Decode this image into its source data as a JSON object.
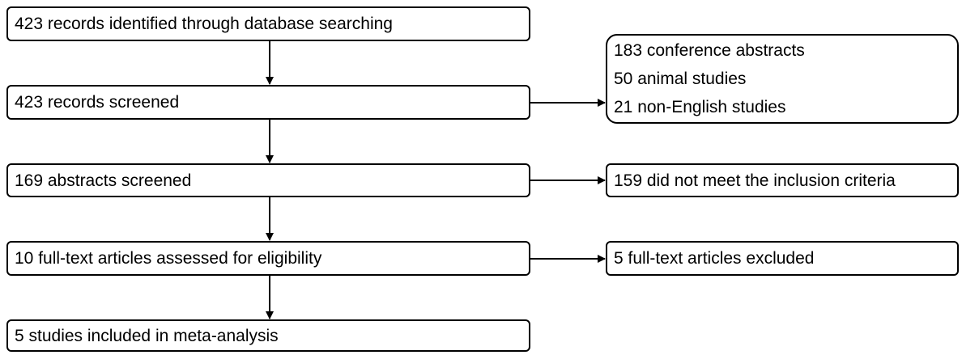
{
  "flow": {
    "main": [
      "423 records identified through database searching",
      "423 records screened",
      "169 abstracts screened",
      "10 full-text articles assessed for eligibility",
      "5 studies included in meta-analysis"
    ],
    "excluded": {
      "records": [
        "183 conference abstracts",
        "50 animal studies",
        "21 non-English studies"
      ],
      "abstracts": "159 did not meet the inclusion criteria",
      "fulltext": "5 full-text articles excluded"
    }
  }
}
